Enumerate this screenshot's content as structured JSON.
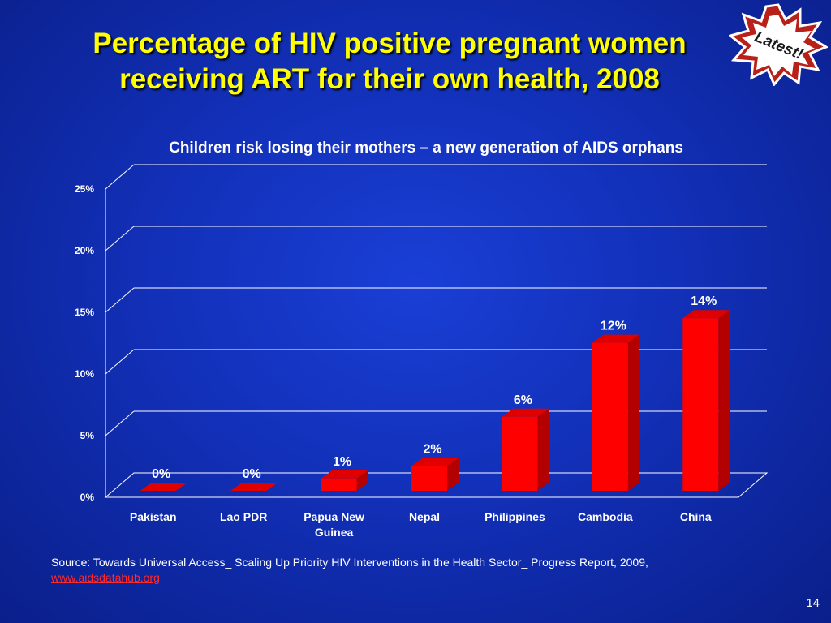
{
  "slide": {
    "title_line1": "Percentage of HIV positive pregnant women",
    "title_line2": "receiving ART for their own health, 2008",
    "badge_text": "Latest!",
    "subtitle": "Children risk losing their mothers – a new generation of AIDS orphans",
    "source_text": "Source: Towards Universal  Access_ Scaling Up Priority HIV Interventions in the Health Sector_ Progress Report, 2009,",
    "source_link": "www.aidsdatahub.org",
    "page_number": "14"
  },
  "chart_data": {
    "type": "bar",
    "categories": [
      "Pakistan",
      "Lao PDR",
      "Papua New Guinea",
      "Nepal",
      "Philippines",
      "Cambodia",
      "China"
    ],
    "category_lines": [
      [
        "Pakistan"
      ],
      [
        "Lao PDR"
      ],
      [
        "Papua New",
        "Guinea"
      ],
      [
        "Nepal"
      ],
      [
        "Philippines"
      ],
      [
        "Cambodia"
      ],
      [
        "China"
      ]
    ],
    "values": [
      0,
      0,
      1,
      2,
      6,
      12,
      14
    ],
    "data_labels": [
      "0%",
      "0%",
      "1%",
      "2%",
      "6%",
      "12%",
      "14%"
    ],
    "y_ticks": [
      "0%",
      "5%",
      "10%",
      "15%",
      "20%",
      "25%"
    ],
    "ylim": [
      0,
      25
    ],
    "grid": true,
    "bar_color": "#ff0000",
    "style": "3d"
  }
}
